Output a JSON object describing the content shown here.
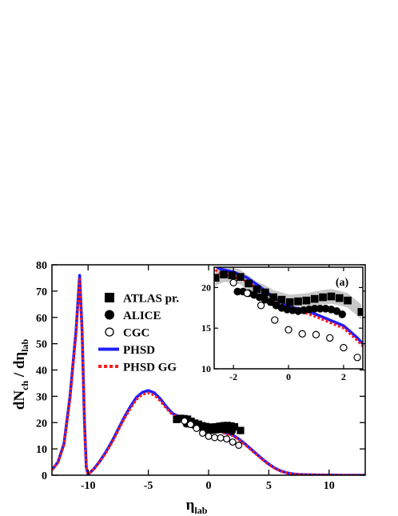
{
  "chart_data": {
    "type": "line",
    "xlabel": "η",
    "xlabel_sub": "lab",
    "ylabel_parts": [
      "dN",
      "ch",
      " / dη",
      "lab"
    ],
    "xlim": [
      -13,
      13
    ],
    "ylim": [
      0,
      80
    ],
    "xticks": [
      -10,
      -5,
      0,
      5,
      10
    ],
    "yticks": [
      0,
      10,
      20,
      30,
      40,
      50,
      60,
      70,
      80
    ],
    "legend_position": "upper-middle",
    "legend": [
      {
        "label": "ATLAS pr.",
        "marker": "filled-square",
        "color": "#000000"
      },
      {
        "label": "ALICE",
        "marker": "filled-circle",
        "color": "#000000"
      },
      {
        "label": "CGC",
        "marker": "open-circle",
        "color": "#000000"
      },
      {
        "label": "PHSD",
        "line": "solid",
        "color": "#1f1fff"
      },
      {
        "label": "PHSD GG",
        "line": "dotted",
        "color": "#ff1a1a"
      }
    ],
    "series": [
      {
        "name": "ATLAS pr.",
        "kind": "markers",
        "marker": "filled-square",
        "x": [
          -2.65,
          -2.35,
          -2.05,
          -1.75,
          -1.45,
          -1.15,
          -0.85,
          -0.55,
          -0.25,
          0.05,
          0.35,
          0.65,
          0.95,
          1.25,
          1.55,
          1.85,
          2.15,
          2.65
        ],
        "y": [
          21.2,
          21.6,
          21.5,
          21.3,
          20.5,
          19.8,
          19.4,
          18.8,
          18.5,
          18.2,
          18.3,
          18.4,
          18.6,
          18.8,
          18.9,
          18.7,
          18.4,
          17.0
        ]
      },
      {
        "name": "ALICE",
        "kind": "markers",
        "marker": "filled-circle",
        "x": [
          -1.85,
          -1.65,
          -1.45,
          -1.25,
          -1.05,
          -0.85,
          -0.65,
          -0.45,
          -0.25,
          -0.05,
          0.15,
          0.35,
          0.55,
          0.75,
          0.95,
          1.15,
          1.35,
          1.55,
          1.75,
          1.95
        ],
        "y": [
          19.5,
          19.5,
          19.3,
          19.1,
          18.8,
          18.5,
          18.2,
          17.8,
          17.5,
          17.3,
          17.2,
          17.1,
          17.2,
          17.3,
          17.4,
          17.4,
          17.4,
          17.3,
          17.1,
          16.7
        ]
      },
      {
        "name": "CGC",
        "kind": "markers",
        "marker": "open-circle",
        "x": [
          -2.0,
          -1.5,
          -1.0,
          -0.5,
          0.0,
          0.5,
          1.0,
          1.5,
          2.0,
          2.5
        ],
        "y": [
          20.6,
          19.3,
          17.8,
          16.0,
          14.8,
          14.3,
          14.2,
          13.8,
          12.6,
          11.4
        ]
      },
      {
        "name": "PHSD",
        "kind": "line",
        "color": "#1f1fff",
        "x": [
          -13.0,
          -12.5,
          -12.0,
          -11.5,
          -11.0,
          -10.7,
          -10.5,
          -10.3,
          -10.15,
          -10.0,
          -9.5,
          -9.0,
          -8.5,
          -8.0,
          -7.5,
          -7.0,
          -6.5,
          -6.0,
          -5.5,
          -5.0,
          -4.5,
          -4.0,
          -3.5,
          -3.0,
          -2.5,
          -2.0,
          -1.5,
          -1.0,
          -0.5,
          0.0,
          0.5,
          1.0,
          1.5,
          2.0,
          2.5,
          3.0,
          3.5,
          4.0,
          4.5,
          5.0,
          5.5,
          6.0,
          6.5,
          7.0,
          7.5,
          8.0,
          9.0,
          10.0,
          11.0,
          12.0,
          13.0
        ],
        "y": [
          2.0,
          5.0,
          12.0,
          30.0,
          55.0,
          76.0,
          55.0,
          20.0,
          3.0,
          0.3,
          2.5,
          5.5,
          9.0,
          13.0,
          17.5,
          22.0,
          26.0,
          29.5,
          31.5,
          32.2,
          31.3,
          29.0,
          26.0,
          23.5,
          22.3,
          21.9,
          21.2,
          20.0,
          18.7,
          17.6,
          17.3,
          16.7,
          16.0,
          15.3,
          13.8,
          12.0,
          10.0,
          8.0,
          6.0,
          4.2,
          2.7,
          1.6,
          0.9,
          0.5,
          0.3,
          0.2,
          0.1,
          0.05,
          0.0,
          0.0,
          0.0
        ]
      },
      {
        "name": "PHSD GG",
        "kind": "line",
        "color": "#ff1a1a",
        "x": [
          -13.0,
          -12.5,
          -12.0,
          -11.5,
          -11.0,
          -10.7,
          -10.5,
          -10.3,
          -10.15,
          -10.0,
          -9.5,
          -9.0,
          -8.5,
          -8.0,
          -7.5,
          -7.0,
          -6.5,
          -6.0,
          -5.5,
          -5.0,
          -4.5,
          -4.0,
          -3.5,
          -3.0,
          -2.5,
          -2.0,
          -1.5,
          -1.0,
          -0.5,
          0.0,
          0.5,
          1.0,
          1.5,
          2.0,
          2.5,
          3.0,
          3.5,
          4.0,
          4.5,
          5.0,
          5.5,
          6.0,
          6.5,
          7.0,
          7.5,
          8.0,
          9.0,
          10.0,
          11.0,
          12.0,
          13.0
        ],
        "y": [
          2.0,
          4.8,
          11.5,
          29.0,
          54.0,
          74.5,
          54.0,
          19.5,
          3.0,
          0.3,
          2.4,
          5.3,
          8.7,
          12.5,
          17.0,
          21.4,
          25.3,
          28.7,
          30.7,
          31.3,
          30.4,
          28.2,
          25.4,
          23.0,
          21.8,
          21.3,
          20.7,
          19.6,
          18.4,
          17.3,
          17.0,
          16.4,
          15.7,
          15.0,
          13.5,
          11.7,
          9.7,
          7.8,
          5.8,
          4.0,
          2.6,
          1.5,
          0.9,
          0.5,
          0.3,
          0.2,
          0.1,
          0.05,
          0.0,
          0.0,
          0.0
        ]
      }
    ],
    "inset": {
      "label": "(a)",
      "xlim": [
        -2.7,
        2.7
      ],
      "ylim": [
        10,
        22.5
      ],
      "xticks": [
        -2,
        0,
        2
      ],
      "yticks": [
        10,
        15,
        20
      ],
      "band": {
        "name": "ATLAS pr. systematic uncertainty",
        "color": "#c8c8c8",
        "x": [
          -2.65,
          -2.35,
          -2.05,
          -1.75,
          -1.45,
          -1.15,
          -0.85,
          -0.55,
          -0.25,
          0.05,
          0.35,
          0.65,
          0.95,
          1.25,
          1.55,
          1.85,
          2.15,
          2.65
        ],
        "low": [
          20.2,
          20.7,
          20.6,
          20.4,
          19.6,
          18.9,
          18.5,
          17.9,
          17.6,
          17.3,
          17.4,
          17.5,
          17.7,
          17.9,
          18.0,
          17.8,
          17.5,
          16.1
        ],
        "high": [
          22.2,
          22.5,
          22.4,
          22.2,
          21.4,
          20.7,
          20.3,
          19.7,
          19.4,
          19.1,
          19.2,
          19.3,
          19.5,
          19.7,
          19.8,
          19.6,
          19.3,
          17.9
        ]
      }
    }
  }
}
